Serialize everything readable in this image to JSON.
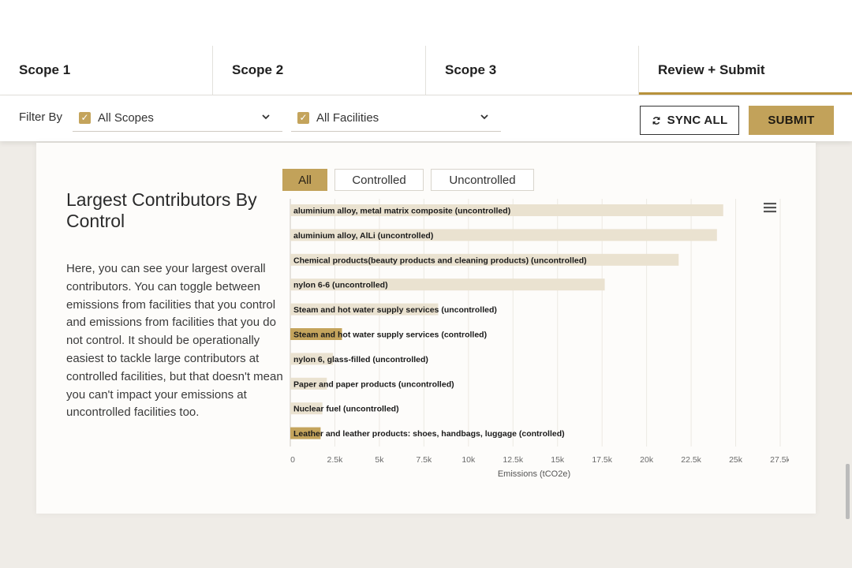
{
  "tabs": [
    {
      "label": "Scope 1",
      "active": false
    },
    {
      "label": "Scope 2",
      "active": false
    },
    {
      "label": "Scope 3",
      "active": false
    },
    {
      "label": "Review + Submit",
      "active": true
    }
  ],
  "filter": {
    "label": "Filter By",
    "scopes": {
      "label": "All Scopes",
      "checked": true
    },
    "facilities": {
      "label": "All Facilities",
      "checked": true
    }
  },
  "actions": {
    "sync_label": "SYNC ALL",
    "submit_label": "SUBMIT"
  },
  "section": {
    "title": "Largest Contributors By Control",
    "description": "Here, you can see your largest overall contributors. You can toggle between emissions from facilities that you control and emissions from facilities that you do not control. It should be operationally easiest to tackle large contributors at controlled facilities, but that doesn't mean you can't impact your emissions at uncontrolled facilities too."
  },
  "toggle": {
    "options": [
      "All",
      "Controlled",
      "Uncontrolled"
    ],
    "active": "All"
  },
  "colors": {
    "accent": "#c2a25a",
    "controlled_bar": "#c4a45c",
    "uncontrolled_bar": "#eae2d0"
  },
  "chart_data": {
    "type": "bar",
    "orientation": "horizontal",
    "categories": [
      "aluminium alloy, metal matrix composite (uncontrolled)",
      "aluminium alloy, AlLi (uncontrolled)",
      "Chemical products(beauty products and cleaning products) (uncontrolled)",
      "nylon 6-6 (uncontrolled)",
      "Steam and hot water supply services (uncontrolled)",
      "Steam and hot water supply services (controlled)",
      "nylon 6, glass-filled (uncontrolled)",
      "Paper and paper products (uncontrolled)",
      "Nuclear fuel (uncontrolled)",
      "Leather and leather products: shoes, handbags, luggage (controlled)"
    ],
    "values": [
      24300,
      23950,
      21800,
      17650,
      8300,
      2900,
      2400,
      2050,
      1800,
      1700
    ],
    "controlled": [
      false,
      false,
      false,
      false,
      false,
      true,
      false,
      false,
      false,
      true
    ],
    "xlabel": "Emissions (tCO2e)",
    "xticks": [
      "0",
      "2.5k",
      "5k",
      "7.5k",
      "10k",
      "12.5k",
      "15k",
      "17.5k",
      "20k",
      "22.5k",
      "25k",
      "27.5k"
    ],
    "xlim": [
      0,
      27500
    ],
    "grid": true
  }
}
